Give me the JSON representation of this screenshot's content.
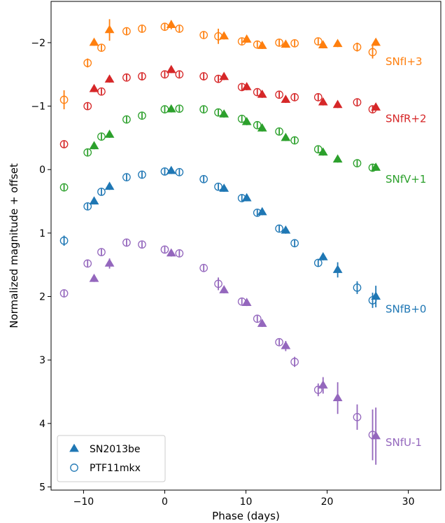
{
  "chart_data": {
    "type": "scatter",
    "xlabel": "Phase (days)",
    "ylabel": "Normalized magnitude + offset",
    "xlim": [
      -14,
      34
    ],
    "ylim": [
      5.05,
      -2.65
    ],
    "y_inverted": true,
    "xticks": [
      -10,
      0,
      10,
      20,
      30
    ],
    "yticks": [
      -2,
      -1,
      0,
      1,
      2,
      3,
      4,
      5
    ],
    "grid": false,
    "legend_position": "bottom-left",
    "legend": [
      {
        "name": "SN2013be",
        "marker": "filled-triangle"
      },
      {
        "name": "PTF11mkx",
        "marker": "open-circle"
      }
    ],
    "bands": [
      {
        "label": "SNfI+3",
        "color": "#ff7f0e",
        "label_y": -1.7,
        "sn2013be": [
          [
            -8.7,
            -2.0,
            0.05
          ],
          [
            -6.8,
            -2.2,
            0.17
          ],
          [
            0.8,
            -2.28,
            0.07
          ],
          [
            7.3,
            -2.1,
            0.05
          ],
          [
            10.1,
            -2.05,
            0.05
          ],
          [
            12.0,
            -1.95,
            0.05
          ],
          [
            14.9,
            -1.97,
            0.05
          ],
          [
            19.5,
            -1.96,
            0.05
          ],
          [
            21.3,
            -1.98,
            0.05
          ],
          [
            26.0,
            -2.0,
            0.05
          ]
        ],
        "ptf11mkx": [
          [
            -12.4,
            -1.1,
            0.15
          ],
          [
            -9.5,
            -1.68,
            0.07
          ],
          [
            -7.8,
            -1.92,
            0.05
          ],
          [
            -4.7,
            -2.18,
            0.05
          ],
          [
            -2.8,
            -2.22,
            0.05
          ],
          [
            0.0,
            -2.25,
            0.05
          ],
          [
            1.8,
            -2.22,
            0.05
          ],
          [
            4.8,
            -2.12,
            0.05
          ],
          [
            6.6,
            -2.1,
            0.12
          ],
          [
            9.5,
            -2.02,
            0.05
          ],
          [
            11.4,
            -1.97,
            0.05
          ],
          [
            14.1,
            -2.0,
            0.05
          ],
          [
            16.0,
            -1.99,
            0.05
          ],
          [
            18.9,
            -2.02,
            0.05
          ],
          [
            23.7,
            -1.93,
            0.07
          ],
          [
            25.6,
            -1.85,
            0.1
          ]
        ]
      },
      {
        "label": "SNfR+2",
        "color": "#d62728",
        "label_y": -0.8,
        "sn2013be": [
          [
            -8.7,
            -1.27,
            0.05
          ],
          [
            -6.8,
            -1.42,
            0.05
          ],
          [
            0.8,
            -1.57,
            0.05
          ],
          [
            7.3,
            -1.46,
            0.05
          ],
          [
            10.1,
            -1.3,
            0.05
          ],
          [
            12.0,
            -1.18,
            0.05
          ],
          [
            14.9,
            -1.1,
            0.05
          ],
          [
            19.5,
            -1.06,
            0.05
          ],
          [
            21.3,
            -1.02,
            0.05
          ],
          [
            26.0,
            -0.98,
            0.05
          ]
        ],
        "ptf11mkx": [
          [
            -12.4,
            -0.4,
            0.05
          ],
          [
            -9.5,
            -1.0,
            0.05
          ],
          [
            -7.8,
            -1.23,
            0.05
          ],
          [
            -4.7,
            -1.45,
            0.05
          ],
          [
            -2.8,
            -1.47,
            0.05
          ],
          [
            0.0,
            -1.5,
            0.05
          ],
          [
            1.8,
            -1.5,
            0.05
          ],
          [
            4.8,
            -1.47,
            0.05
          ],
          [
            6.6,
            -1.43,
            0.05
          ],
          [
            9.5,
            -1.3,
            0.05
          ],
          [
            11.4,
            -1.22,
            0.05
          ],
          [
            14.1,
            -1.18,
            0.05
          ],
          [
            16.0,
            -1.14,
            0.05
          ],
          [
            18.9,
            -1.14,
            0.05
          ],
          [
            23.7,
            -1.06,
            0.05
          ],
          [
            25.6,
            -0.95,
            0.05
          ]
        ]
      },
      {
        "label": "SNfV+1",
        "color": "#2ca02c",
        "label_y": 0.15,
        "sn2013be": [
          [
            -8.7,
            -0.37,
            0.05
          ],
          [
            -6.8,
            -0.55,
            0.05
          ],
          [
            0.8,
            -0.95,
            0.05
          ],
          [
            7.3,
            -0.87,
            0.05
          ],
          [
            10.1,
            -0.75,
            0.05
          ],
          [
            12.0,
            -0.65,
            0.05
          ],
          [
            14.9,
            -0.5,
            0.05
          ],
          [
            19.5,
            -0.27,
            0.05
          ],
          [
            21.3,
            -0.16,
            0.05
          ],
          [
            26.0,
            -0.03,
            0.05
          ]
        ],
        "ptf11mkx": [
          [
            -12.4,
            0.28,
            0.05
          ],
          [
            -9.5,
            -0.27,
            0.05
          ],
          [
            -7.8,
            -0.52,
            0.05
          ],
          [
            -4.7,
            -0.79,
            0.05
          ],
          [
            -2.8,
            -0.85,
            0.05
          ],
          [
            0.0,
            -0.95,
            0.05
          ],
          [
            1.8,
            -0.96,
            0.05
          ],
          [
            4.8,
            -0.95,
            0.05
          ],
          [
            6.6,
            -0.9,
            0.05
          ],
          [
            9.5,
            -0.8,
            0.05
          ],
          [
            11.4,
            -0.7,
            0.05
          ],
          [
            14.1,
            -0.6,
            0.05
          ],
          [
            16.0,
            -0.46,
            0.05
          ],
          [
            18.9,
            -0.32,
            0.05
          ],
          [
            23.7,
            -0.1,
            0.05
          ],
          [
            25.6,
            -0.03,
            0.05
          ]
        ]
      },
      {
        "label": "SNfB+0",
        "color": "#1f77b4",
        "label_y": 2.2,
        "sn2013be": [
          [
            -8.7,
            0.5,
            0.05
          ],
          [
            -6.8,
            0.27,
            0.05
          ],
          [
            0.8,
            0.02,
            0.05
          ],
          [
            7.3,
            0.3,
            0.05
          ],
          [
            10.1,
            0.45,
            0.05
          ],
          [
            12.0,
            0.67,
            0.05
          ],
          [
            14.9,
            0.96,
            0.05
          ],
          [
            19.5,
            1.38,
            0.05
          ],
          [
            21.3,
            1.58,
            0.12
          ],
          [
            26.0,
            2.0,
            0.17
          ]
        ],
        "ptf11mkx": [
          [
            -12.4,
            1.12,
            0.08
          ],
          [
            -9.5,
            0.58,
            0.05
          ],
          [
            -7.8,
            0.35,
            0.05
          ],
          [
            -4.7,
            0.12,
            0.05
          ],
          [
            -2.8,
            0.08,
            0.05
          ],
          [
            0.0,
            0.03,
            0.05
          ],
          [
            1.8,
            0.04,
            0.05
          ],
          [
            4.8,
            0.15,
            0.05
          ],
          [
            6.6,
            0.27,
            0.05
          ],
          [
            9.5,
            0.45,
            0.05
          ],
          [
            11.4,
            0.68,
            0.05
          ],
          [
            14.1,
            0.93,
            0.05
          ],
          [
            16.0,
            1.16,
            0.05
          ],
          [
            18.9,
            1.47,
            0.05
          ],
          [
            23.7,
            1.86,
            0.1
          ],
          [
            25.6,
            2.06,
            0.12
          ]
        ]
      },
      {
        "label": "SNfU-1",
        "color": "#9467bd",
        "label_y": 4.3,
        "sn2013be": [
          [
            -8.7,
            1.72,
            0.05
          ],
          [
            -6.8,
            1.48,
            0.08
          ],
          [
            0.8,
            1.32,
            0.05
          ],
          [
            7.3,
            1.9,
            0.05
          ],
          [
            10.1,
            2.1,
            0.05
          ],
          [
            12.0,
            2.43,
            0.05
          ],
          [
            14.9,
            2.78,
            0.08
          ],
          [
            19.5,
            3.4,
            0.13
          ],
          [
            21.3,
            3.6,
            0.25
          ],
          [
            26.0,
            4.2,
            0.45
          ]
        ],
        "ptf11mkx": [
          [
            -12.4,
            1.95,
            0.05
          ],
          [
            -9.5,
            1.48,
            0.05
          ],
          [
            -7.8,
            1.3,
            0.05
          ],
          [
            -4.7,
            1.15,
            0.05
          ],
          [
            -2.8,
            1.18,
            0.05
          ],
          [
            0.0,
            1.26,
            0.05
          ],
          [
            1.8,
            1.32,
            0.05
          ],
          [
            4.8,
            1.55,
            0.05
          ],
          [
            6.6,
            1.8,
            0.1
          ],
          [
            9.5,
            2.08,
            0.05
          ],
          [
            11.4,
            2.35,
            0.05
          ],
          [
            14.1,
            2.72,
            0.05
          ],
          [
            16.0,
            3.03,
            0.08
          ],
          [
            18.9,
            3.47,
            0.1
          ],
          [
            23.7,
            3.9,
            0.2
          ],
          [
            25.6,
            4.18,
            0.4
          ]
        ]
      }
    ]
  }
}
